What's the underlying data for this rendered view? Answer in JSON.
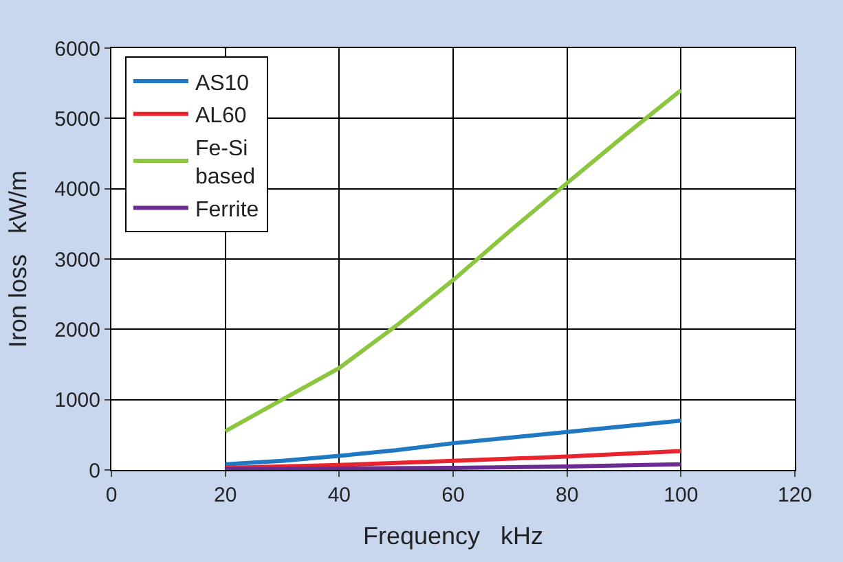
{
  "chart_data": {
    "type": "line",
    "xlabel": "Frequency   kHz",
    "ylabel": "Iron loss   kW/m",
    "xlim": [
      0,
      120
    ],
    "xticks": [
      0,
      20,
      40,
      60,
      80,
      100,
      120
    ],
    "ylim": [
      0,
      6000
    ],
    "yticks": [
      0,
      1000,
      2000,
      3000,
      4000,
      5000,
      6000
    ],
    "grid": true,
    "legend": "top left",
    "marker": "none",
    "line_style": "solid",
    "series": [
      {
        "name": "AS10",
        "color": "#1f78c1",
        "x": [
          20,
          30,
          40,
          50,
          60,
          70,
          80,
          90,
          100
        ],
        "values": [
          80,
          130,
          200,
          280,
          380,
          460,
          540,
          620,
          700
        ]
      },
      {
        "name": "AL60",
        "color": "#e8252e",
        "x": [
          20,
          40,
          60,
          80,
          100
        ],
        "values": [
          30,
          70,
          130,
          190,
          270
        ]
      },
      {
        "name": "Fe-Si\nbased",
        "color": "#8cc63f",
        "x": [
          20,
          30,
          40,
          50,
          60,
          70,
          80,
          90,
          100
        ],
        "values": [
          550,
          1000,
          1450,
          2050,
          2700,
          3400,
          4080,
          4750,
          5400
        ]
      },
      {
        "name": "Ferrite",
        "color": "#6a2c91",
        "x": [
          20,
          40,
          60,
          80,
          100
        ],
        "values": [
          10,
          20,
          30,
          50,
          80
        ]
      }
    ]
  }
}
